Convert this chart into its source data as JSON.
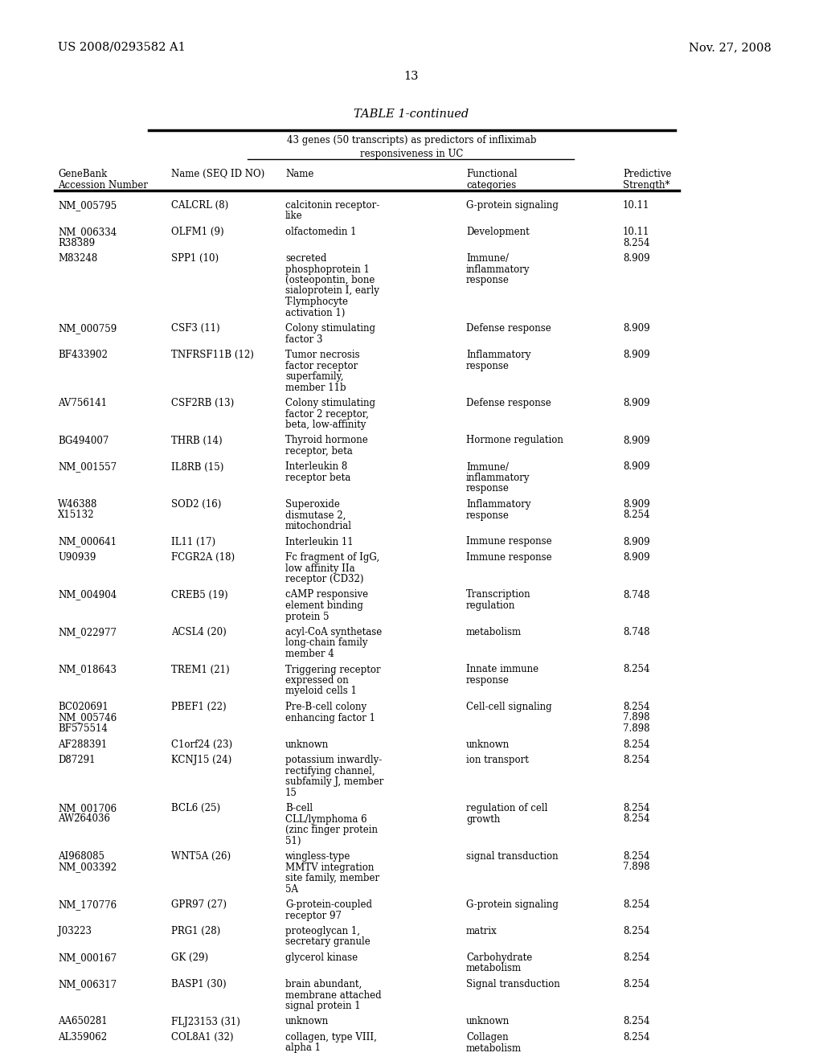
{
  "patent_left": "US 2008/0293582 A1",
  "patent_right": "Nov. 27, 2008",
  "page_number": "13",
  "table_title": "TABLE 1-continued",
  "table_subtitle1": "43 genes (50 transcripts) as predictors of infliximab",
  "table_subtitle2": "responsiveness in UC",
  "col_headers_line1": [
    "GeneBank",
    "",
    "",
    "Functional",
    "Predictive"
  ],
  "col_headers_line2": [
    "Accession Number",
    "Name (SEQ ID NO)",
    "Name",
    "categories",
    "Strength*"
  ],
  "rows": [
    [
      "NM_005795",
      "CALCRL (8)",
      "calcitonin receptor-\nlike",
      "G-protein signaling",
      "10.11"
    ],
    [
      "NM_006334\nR38389",
      "OLFM1 (9)",
      "olfactomedin 1",
      "Development",
      "10.11\n8.254"
    ],
    [
      "M83248",
      "SPP1 (10)",
      "secreted\nphosphoprotein 1\n(osteopontin, bone\nsialoprotein I, early\nT-lymphocyte\nactivation 1)",
      "Immune/\ninflammatory\nresponse",
      "8.909"
    ],
    [
      "NM_000759",
      "CSF3 (11)",
      "Colony stimulating\nfactor 3",
      "Defense response",
      "8.909"
    ],
    [
      "BF433902",
      "TNFRSF11B (12)",
      "Tumor necrosis\nfactor receptor\nsuperfamily,\nmember 11b",
      "Inflammatory\nresponse",
      "8.909"
    ],
    [
      "AV756141",
      "CSF2RB (13)",
      "Colony stimulating\nfactor 2 receptor,\nbeta, low-affinity",
      "Defense response",
      "8.909"
    ],
    [
      "BG494007",
      "THRB (14)",
      "Thyroid hormone\nreceptor, beta",
      "Hormone regulation",
      "8.909"
    ],
    [
      "NM_001557",
      "IL8RB (15)",
      "Interleukin 8\nreceptor beta",
      "Immune/\ninflammatory\nresponse",
      "8.909"
    ],
    [
      "W46388\nX15132",
      "SOD2 (16)",
      "Superoxide\ndismutase 2,\nmitochondrial",
      "Inflammatory\nresponse",
      "8.909\n8.254"
    ],
    [
      "NM_000641",
      "IL11 (17)",
      "Interleukin 11",
      "Immune response",
      "8.909"
    ],
    [
      "U90939",
      "FCGR2A (18)",
      "Fc fragment of IgG,\nlow affinity IIa\nreceptor (CD32)",
      "Immune response",
      "8.909"
    ],
    [
      "NM_004904",
      "CREB5 (19)",
      "cAMP responsive\nelement binding\nprotein 5",
      "Transcription\nregulation",
      "8.748"
    ],
    [
      "NM_022977",
      "ACSL4 (20)",
      "acyl-CoA synthetase\nlong-chain family\nmember 4",
      "metabolism",
      "8.748"
    ],
    [
      "NM_018643",
      "TREM1 (21)",
      "Triggering receptor\nexpressed on\nmyeloid cells 1",
      "Innate immune\nresponse",
      "8.254"
    ],
    [
      "BC020691\nNM_005746\nBF575514",
      "PBEF1 (22)",
      "Pre-B-cell colony\nenhancing factor 1",
      "Cell-cell signaling",
      "8.254\n7.898\n7.898"
    ],
    [
      "AF288391",
      "C1orf24 (23)",
      "unknown",
      "unknown",
      "8.254"
    ],
    [
      "D87291",
      "KCNJ15 (24)",
      "potassium inwardly-\nrectifying channel,\nsubfamily J, member\n15",
      "ion transport",
      "8.254"
    ],
    [
      "NM_001706\nAW264036",
      "BCL6 (25)",
      "B-cell\nCLL/lymphoma 6\n(zinc finger protein\n51)",
      "regulation of cell\ngrowth",
      "8.254\n8.254"
    ],
    [
      "AI968085\nNM_003392",
      "WNT5A (26)",
      "wingless-type\nMMTV integration\nsite family, member\n5A",
      "signal transduction",
      "8.254\n7.898"
    ],
    [
      "NM_170776",
      "GPR97 (27)",
      "G-protein-coupled\nreceptor 97",
      "G-protein signaling",
      "8.254"
    ],
    [
      "J03223",
      "PRG1 (28)",
      "proteoglycan 1,\nsecretary granule",
      "matrix",
      "8.254"
    ],
    [
      "NM_000167",
      "GK (29)",
      "glycerol kinase",
      "Carbohydrate\nmetabolism",
      "8.254"
    ],
    [
      "NM_006317",
      "BASP1 (30)",
      "brain abundant,\nmembrane attached\nsignal protein 1",
      "Signal transduction",
      "8.254"
    ],
    [
      "AA650281",
      "FLJ23153 (31)",
      "unknown",
      "unknown",
      "8.254"
    ],
    [
      "AL359062",
      "COL8A1 (32)",
      "collagen, type VIII,\nalpha 1",
      "Collagen\nmetabolism",
      "8.254"
    ]
  ],
  "bg_color": "#ffffff",
  "text_color": "#000000",
  "font_size_header": 9.5,
  "font_size_body": 8.5,
  "font_size_title": 10.5,
  "font_size_patent": 10.5
}
